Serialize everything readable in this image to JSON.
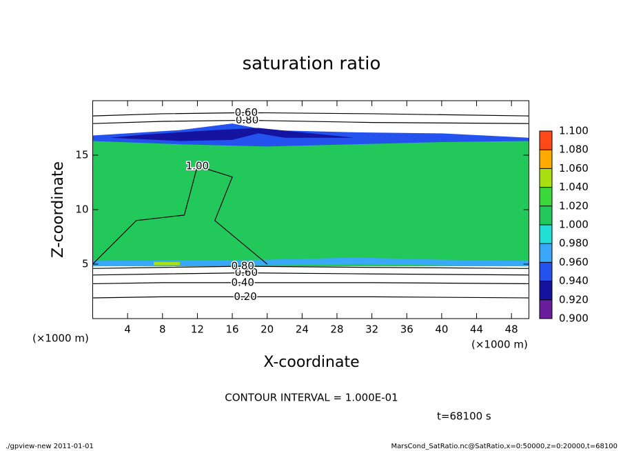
{
  "chart_data": {
    "type": "contour",
    "title": "saturation ratio",
    "x_label": "X-coordinate",
    "y_label": "Z-coordinate",
    "x_units": "(×1000 m)",
    "y_units": "(×1000 m)",
    "xlim": [
      0,
      50
    ],
    "ylim": [
      0,
      20
    ],
    "xticks": [
      4,
      8,
      12,
      16,
      20,
      24,
      28,
      32,
      36,
      40,
      44,
      48
    ],
    "yticks": [
      5,
      10,
      15
    ],
    "colorbar": {
      "ticks": [
        {
          "value": 0.9,
          "label": "0.900"
        },
        {
          "value": 0.92,
          "label": "0.920"
        },
        {
          "value": 0.94,
          "label": "0.940"
        },
        {
          "value": 0.96,
          "label": "0.960"
        },
        {
          "value": 0.98,
          "label": "0.980"
        },
        {
          "value": 1.0,
          "label": "1.000"
        },
        {
          "value": 1.02,
          "label": "1.020"
        },
        {
          "value": 1.04,
          "label": "1.040"
        },
        {
          "value": 1.06,
          "label": "1.060"
        },
        {
          "value": 1.08,
          "label": "1.080"
        },
        {
          "value": 1.1,
          "label": "1.100"
        }
      ],
      "colors": [
        "#6a1e9e",
        "#1414a0",
        "#2452ee",
        "#3aa8f8",
        "#22e0d8",
        "#22c85a",
        "#3ad83a",
        "#a8e010",
        "#ffaa00",
        "#ff4818",
        "#ff9a9a"
      ]
    },
    "regions": [
      {
        "value": 1.01,
        "x": [
          0,
          50,
          50,
          0
        ],
        "y": [
          4.8,
          4.8,
          16.4,
          16.4
        ]
      },
      {
        "value": 0.95,
        "x": [
          0,
          10,
          20,
          30,
          40,
          50,
          50,
          40,
          30,
          20,
          16,
          10,
          0
        ],
        "y": [
          16.3,
          16.0,
          15.8,
          16.0,
          16.2,
          16.3,
          16.6,
          17.0,
          17.1,
          17.3,
          17.9,
          17.3,
          16.8
        ]
      },
      {
        "value": 0.93,
        "x": [
          2,
          10,
          16,
          19,
          22,
          30,
          19,
          14,
          6
        ],
        "y": [
          16.6,
          16.3,
          16.4,
          17.0,
          16.6,
          16.6,
          17.5,
          17.3,
          16.9
        ]
      },
      {
        "value": 0.97,
        "x": [
          0,
          20,
          30,
          40,
          50,
          50,
          40,
          30,
          20,
          0
        ],
        "y": [
          4.8,
          4.9,
          5.0,
          4.9,
          4.8,
          5.3,
          5.4,
          5.6,
          5.4,
          5.3
        ]
      },
      {
        "value": 1.05,
        "x": [
          7,
          10,
          10,
          7
        ],
        "y": [
          4.9,
          4.9,
          5.2,
          5.2
        ]
      }
    ],
    "contours": [
      {
        "label": "0.20",
        "x": [
          0,
          8,
          17.5,
          32,
          50
        ],
        "y": [
          1.9,
          2.0,
          2.0,
          2.0,
          1.9
        ]
      },
      {
        "label": "0.40",
        "x": [
          0,
          8,
          17.2,
          32,
          50
        ],
        "y": [
          3.2,
          3.3,
          3.3,
          3.3,
          3.2
        ]
      },
      {
        "label": "0.60",
        "x": [
          0,
          8,
          17.6,
          32,
          50
        ],
        "y": [
          4.0,
          4.1,
          4.2,
          4.1,
          4.0
        ]
      },
      {
        "label": "0.80",
        "x": [
          0,
          8,
          17.2,
          32,
          50
        ],
        "y": [
          4.6,
          4.7,
          4.8,
          4.7,
          4.6
        ]
      },
      {
        "label": "1.00",
        "x": [
          0,
          5,
          10.5,
          12,
          16,
          14,
          20
        ],
        "y": [
          5.0,
          9.0,
          9.5,
          14.0,
          13.0,
          9.0,
          5.0
        ]
      },
      {
        "label": "0.80",
        "x": [
          0,
          8,
          17.7,
          32,
          50
        ],
        "y": [
          17.9,
          18.1,
          18.2,
          18.0,
          17.9
        ]
      },
      {
        "label": "0.60",
        "x": [
          0,
          8,
          17.6,
          32,
          50
        ],
        "y": [
          18.6,
          18.8,
          18.9,
          18.8,
          18.6
        ]
      }
    ],
    "note": "CONTOUR INTERVAL = 1.000E-01",
    "time_label": "t=68100 s",
    "footer_left": "./gpview-new   2011-01-01",
    "footer_right": "MarsCond_SatRatio.nc@SatRatio,x=0:50000,z=0:20000,t=68100"
  }
}
